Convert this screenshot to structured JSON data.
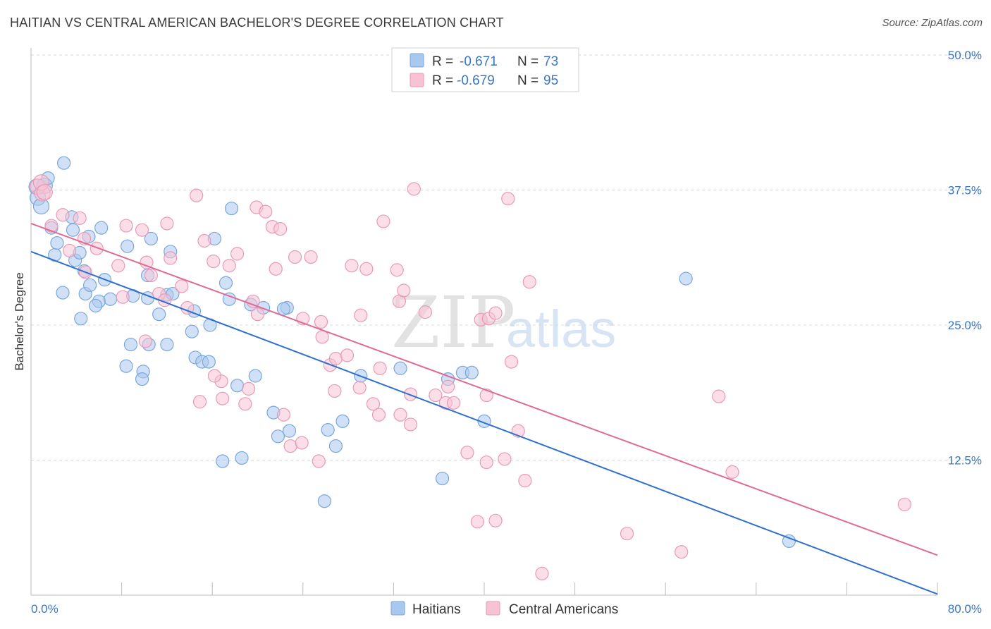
{
  "header": {
    "title": "HAITIAN VS CENTRAL AMERICAN BACHELOR'S DEGREE CORRELATION CHART",
    "source": "Source: ZipAtlas.com"
  },
  "watermark": {
    "zip": "ZIP",
    "atlas": "atlas"
  },
  "colors": {
    "blue": "#3a76c4",
    "blue_fill": "#a9c8f0",
    "blue_stroke": "#7aa6dc",
    "blue_line": "#2f6fd0",
    "pink": "#e0709a",
    "pink_fill": "#f7c3d4",
    "pink_stroke": "#e89ab6",
    "pink_line": "#e06a95",
    "grid": "#d9d9d9"
  },
  "legend": {
    "rows": [
      {
        "r_label": "R =",
        "r_value": "-0.671",
        "n_label": "N =",
        "n_value": "73"
      },
      {
        "r_label": "R =",
        "r_value": "-0.679",
        "n_label": "N =",
        "n_value": "95"
      }
    ]
  },
  "chart_data": {
    "type": "scatter",
    "title": "HAITIAN VS CENTRAL AMERICAN BACHELOR'S DEGREE CORRELATION CHART",
    "xlabel": "",
    "ylabel": "Bachelor's Degree",
    "xlim": [
      0,
      80
    ],
    "ylim": [
      0,
      50
    ],
    "x_tick_labels": [
      "0.0%",
      "80.0%"
    ],
    "y_ticks": [
      12.5,
      25.0,
      37.5,
      50.0
    ],
    "y_tick_labels": [
      "12.5%",
      "25.0%",
      "37.5%",
      "50.0%"
    ],
    "grid": "horizontal-dashed",
    "legend_position": "top-center",
    "series": [
      {
        "name": "Haitians",
        "regression": {
          "x": [
            0,
            80
          ],
          "y": [
            31.8,
            0.1
          ]
        },
        "points": [
          [
            0.5,
            37.8
          ],
          [
            0.6,
            36.8
          ],
          [
            0.9,
            36.0
          ],
          [
            1.2,
            37.9
          ],
          [
            1.5,
            38.6
          ],
          [
            2.9,
            40.0
          ],
          [
            1.8,
            34.0
          ],
          [
            3.6,
            35.0
          ],
          [
            2.1,
            31.5
          ],
          [
            2.3,
            32.6
          ],
          [
            3.9,
            31.0
          ],
          [
            4.3,
            31.7
          ],
          [
            3.7,
            33.8
          ],
          [
            5.1,
            33.2
          ],
          [
            6.2,
            34.0
          ],
          [
            4.7,
            30.0
          ],
          [
            2.8,
            28.0
          ],
          [
            4.8,
            27.9
          ],
          [
            5.2,
            28.7
          ],
          [
            4.4,
            25.6
          ],
          [
            6.5,
            29.2
          ],
          [
            6.0,
            27.2
          ],
          [
            5.7,
            26.8
          ],
          [
            7.0,
            27.4
          ],
          [
            8.5,
            32.3
          ],
          [
            10.6,
            33.0
          ],
          [
            12.3,
            31.8
          ],
          [
            10.3,
            29.6
          ],
          [
            12.0,
            27.8
          ],
          [
            10.3,
            27.5
          ],
          [
            9.0,
            27.7
          ],
          [
            11.3,
            26.0
          ],
          [
            12.5,
            27.9
          ],
          [
            10.4,
            23.2
          ],
          [
            8.8,
            23.2
          ],
          [
            12.0,
            23.2
          ],
          [
            8.4,
            21.2
          ],
          [
            9.9,
            20.7
          ],
          [
            9.8,
            20.0
          ],
          [
            14.2,
            24.4
          ],
          [
            15.8,
            25.0
          ],
          [
            14.5,
            22.0
          ],
          [
            15.1,
            21.6
          ],
          [
            15.7,
            21.6
          ],
          [
            16.2,
            33.0
          ],
          [
            17.7,
            35.8
          ],
          [
            17.2,
            28.9
          ],
          [
            17.5,
            27.4
          ],
          [
            19.4,
            26.9
          ],
          [
            20.5,
            26.6
          ],
          [
            22.6,
            26.6
          ],
          [
            22.3,
            26.5
          ],
          [
            18.2,
            19.4
          ],
          [
            19.8,
            20.3
          ],
          [
            21.4,
            16.9
          ],
          [
            21.8,
            14.7
          ],
          [
            22.8,
            15.2
          ],
          [
            16.9,
            12.4
          ],
          [
            18.6,
            12.7
          ],
          [
            26.2,
            15.3
          ],
          [
            26.9,
            13.8
          ],
          [
            27.5,
            16.1
          ],
          [
            29.1,
            20.3
          ],
          [
            25.9,
            8.7
          ],
          [
            32.6,
            21.0
          ],
          [
            36.8,
            20.0
          ],
          [
            38.1,
            20.6
          ],
          [
            38.9,
            20.6
          ],
          [
            40.0,
            16.1
          ],
          [
            36.3,
            10.8
          ],
          [
            57.8,
            29.3
          ],
          [
            66.9,
            5.0
          ],
          [
            14.4,
            26.3
          ]
        ]
      },
      {
        "name": "Central Americans",
        "regression": {
          "x": [
            0,
            80
          ],
          "y": [
            34.4,
            3.7
          ]
        },
        "points": [
          [
            0.6,
            37.8
          ],
          [
            1.0,
            37.2
          ],
          [
            0.9,
            38.2
          ],
          [
            1.2,
            37.3
          ],
          [
            1.8,
            34.2
          ],
          [
            2.8,
            35.2
          ],
          [
            4.3,
            34.9
          ],
          [
            3.4,
            31.9
          ],
          [
            4.7,
            33.0
          ],
          [
            5.8,
            32.1
          ],
          [
            4.8,
            29.9
          ],
          [
            7.7,
            30.5
          ],
          [
            8.4,
            34.2
          ],
          [
            9.8,
            33.8
          ],
          [
            10.2,
            30.8
          ],
          [
            10.6,
            29.6
          ],
          [
            12.0,
            34.4
          ],
          [
            12.3,
            31.2
          ],
          [
            11.3,
            27.9
          ],
          [
            11.8,
            27.3
          ],
          [
            13.3,
            28.6
          ],
          [
            13.8,
            26.6
          ],
          [
            15.3,
            32.8
          ],
          [
            14.6,
            37.0
          ],
          [
            16.1,
            30.9
          ],
          [
            17.5,
            30.5
          ],
          [
            18.2,
            31.6
          ],
          [
            19.6,
            27.2
          ],
          [
            20.0,
            26.0
          ],
          [
            19.9,
            35.9
          ],
          [
            20.7,
            35.5
          ],
          [
            21.3,
            34.1
          ],
          [
            22.0,
            33.9
          ],
          [
            21.6,
            30.2
          ],
          [
            23.3,
            31.3
          ],
          [
            24.7,
            31.3
          ],
          [
            24.0,
            25.6
          ],
          [
            25.6,
            25.3
          ],
          [
            25.7,
            23.9
          ],
          [
            26.4,
            21.3
          ],
          [
            26.9,
            21.9
          ],
          [
            27.9,
            22.2
          ],
          [
            28.3,
            30.5
          ],
          [
            29.6,
            30.2
          ],
          [
            29.1,
            25.9
          ],
          [
            29.0,
            19.2
          ],
          [
            26.8,
            18.9
          ],
          [
            31.1,
            34.6
          ],
          [
            30.8,
            21.0
          ],
          [
            32.3,
            30.1
          ],
          [
            32.5,
            27.2
          ],
          [
            32.9,
            28.2
          ],
          [
            33.8,
            37.6
          ],
          [
            34.8,
            26.2
          ],
          [
            33.5,
            18.6
          ],
          [
            35.7,
            18.5
          ],
          [
            36.6,
            17.8
          ],
          [
            37.3,
            17.8
          ],
          [
            36.8,
            19.3
          ],
          [
            39.7,
            25.5
          ],
          [
            40.4,
            25.6
          ],
          [
            41.0,
            26.1
          ],
          [
            42.1,
            36.7
          ],
          [
            44.0,
            29.0
          ],
          [
            42.4,
            21.6
          ],
          [
            40.2,
            18.5
          ],
          [
            38.5,
            13.2
          ],
          [
            40.2,
            12.3
          ],
          [
            41.8,
            12.6
          ],
          [
            43.6,
            10.6
          ],
          [
            39.4,
            6.8
          ],
          [
            41.0,
            6.9
          ],
          [
            43.0,
            15.2
          ],
          [
            45.1,
            2.0
          ],
          [
            52.6,
            5.7
          ],
          [
            57.4,
            4.0
          ],
          [
            60.7,
            18.4
          ],
          [
            61.9,
            11.4
          ],
          [
            77.1,
            8.4
          ],
          [
            33.5,
            15.8
          ],
          [
            32.6,
            16.7
          ],
          [
            30.7,
            16.7
          ],
          [
            30.2,
            17.7
          ],
          [
            22.3,
            16.7
          ],
          [
            22.9,
            13.8
          ],
          [
            23.9,
            14.1
          ],
          [
            25.4,
            12.4
          ],
          [
            19.2,
            19.1
          ],
          [
            18.9,
            17.7
          ],
          [
            16.9,
            18.2
          ],
          [
            16.8,
            19.8
          ],
          [
            16.2,
            20.3
          ],
          [
            14.9,
            17.9
          ],
          [
            10.1,
            23.5
          ],
          [
            8.1,
            27.6
          ]
        ]
      }
    ]
  },
  "bottom_legend": {
    "items": [
      {
        "label": "Haitians"
      },
      {
        "label": "Central Americans"
      }
    ]
  }
}
